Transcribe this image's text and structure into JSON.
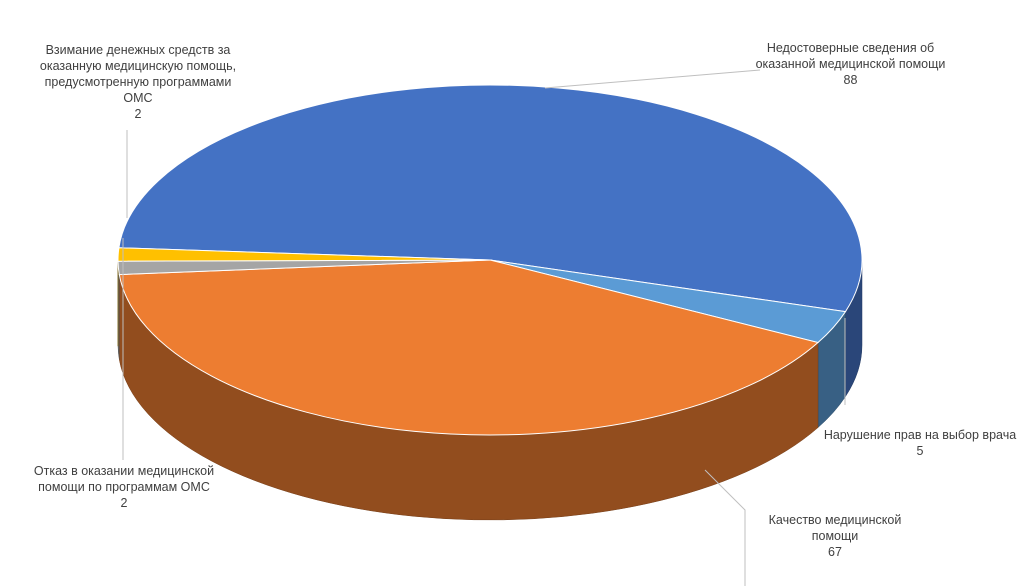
{
  "chart_data": {
    "type": "pie3d",
    "categories": [
      "Недостоверные сведения об оказанной медицинской помощи",
      "Нарушение прав на выбор врача",
      "Качество медицинской помощи",
      "Отказ в оказании медицинской помощи по программам ОМС",
      "Взимание денежных средств за оказанную медицинскую помощь, предусмотренную программами ОМС"
    ],
    "values": [
      88,
      5,
      67,
      2,
      2
    ],
    "colors": [
      "#4472c4",
      "#5b9bd5",
      "#ed7d31",
      "#a5a5a5",
      "#ffc000"
    ]
  }
}
